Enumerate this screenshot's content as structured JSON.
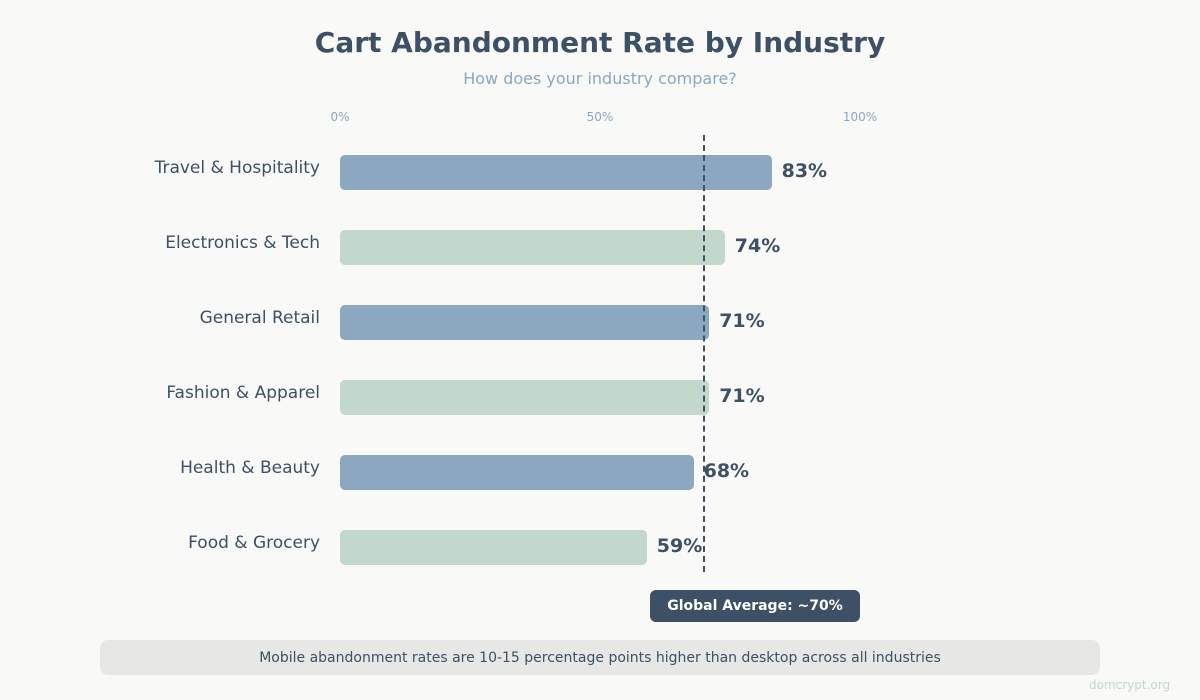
{
  "chart_data": {
    "type": "bar",
    "orientation": "horizontal",
    "title": "Cart Abandonment Rate by Industry",
    "subtitle": "How does your industry compare?",
    "xlim": [
      0,
      100
    ],
    "ticks": [
      "0%",
      "50%",
      "100%"
    ],
    "tick_values": [
      0,
      50,
      100
    ],
    "categories": [
      "Travel & Hospitality",
      "Electronics & Tech",
      "General Retail",
      "Fashion & Apparel",
      "Health & Beauty",
      "Food & Grocery"
    ],
    "values": [
      83,
      74,
      71,
      71,
      68,
      59
    ],
    "value_labels": [
      "83%",
      "74%",
      "71%",
      "71%",
      "68%",
      "59%"
    ],
    "bar_colors": [
      "#8ca8c0",
      "#c2d8cc",
      "#8ca8c0",
      "#c2d8cc",
      "#8ca8c0",
      "#c2d8cc"
    ],
    "reference_line": {
      "value": 70,
      "label": "Global Average: ~70%"
    },
    "grid": false
  },
  "footnote": "Mobile abandonment rates are 10-15 percentage points higher than desktop across all industries",
  "watermark": "domcrypt.org"
}
